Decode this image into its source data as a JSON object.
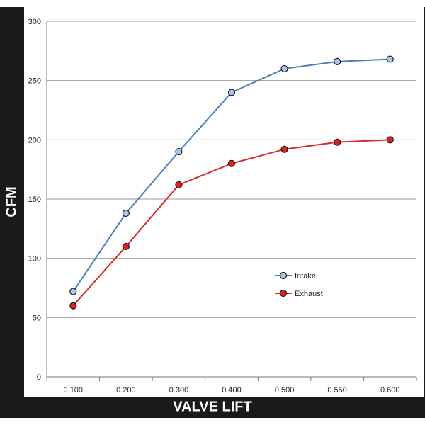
{
  "chart_data": {
    "type": "line",
    "title": "",
    "xlabel": "VALVE LIFT",
    "ylabel": "CFM",
    "categories": [
      "0.100",
      "0.200",
      "0.300",
      "0.400",
      "0.500",
      "0.550",
      "0.600"
    ],
    "ylim": [
      0,
      300
    ],
    "yticks": [
      "0",
      "50",
      "100",
      "150",
      "200",
      "250",
      "300"
    ],
    "grid": "horizontal",
    "legend_position": "right-middle",
    "series": [
      {
        "name": "Intake",
        "color": "#4a7ebb",
        "marker_fill": "#a8c4e6",
        "values": [
          72,
          138,
          190,
          240,
          260,
          266,
          268
        ]
      },
      {
        "name": "Exhaust",
        "color": "#d42a2a",
        "marker_fill": "#e02020",
        "values": [
          60,
          110,
          162,
          180,
          192,
          198,
          200
        ]
      }
    ]
  }
}
